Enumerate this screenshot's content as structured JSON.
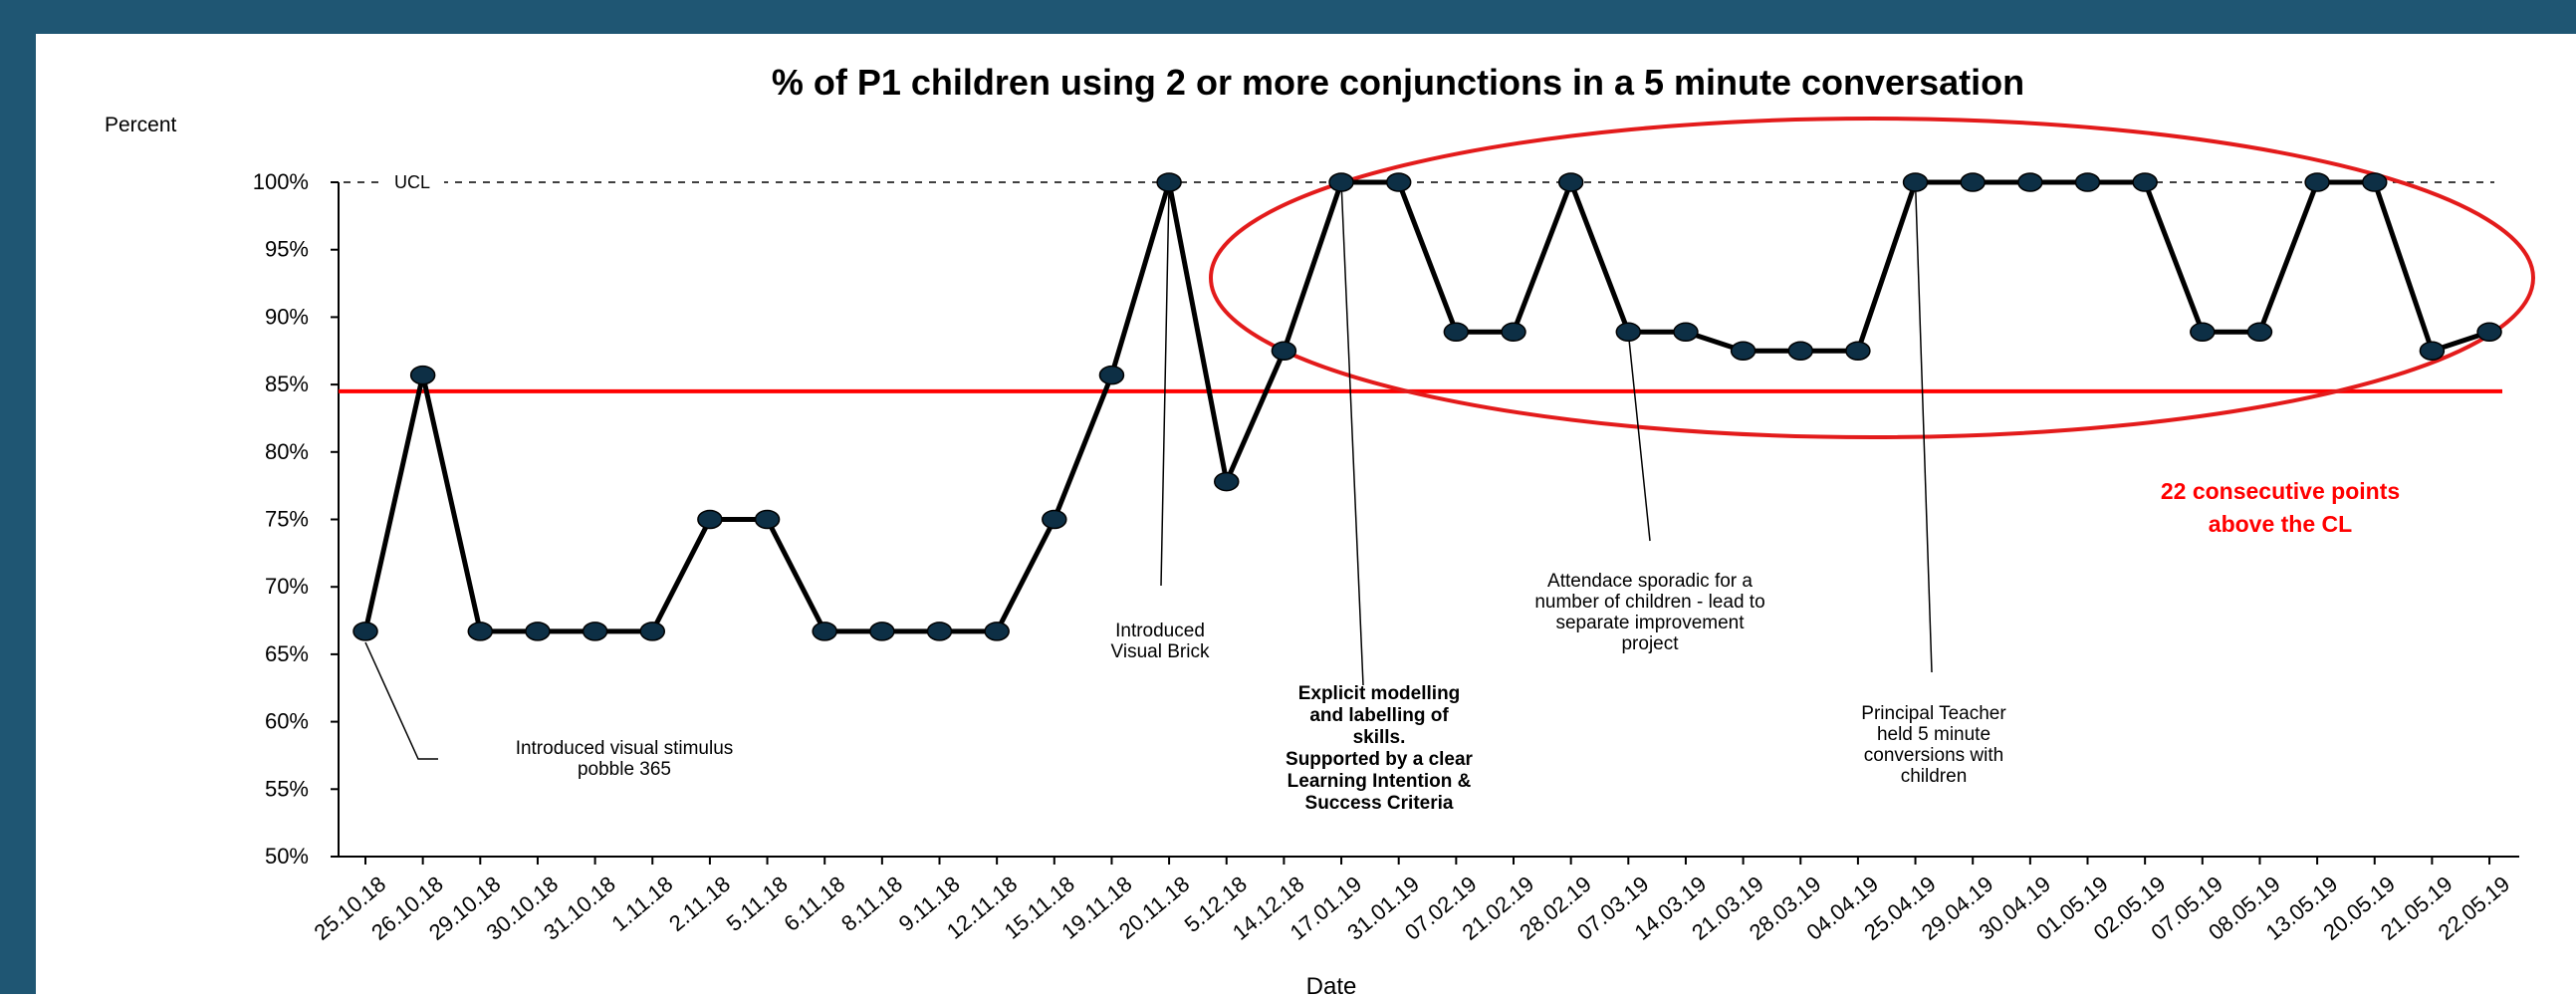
{
  "theme": {
    "border": "#1f5673",
    "line": "#000000",
    "point": "#0d2f45",
    "cl": "#ff0000",
    "highlight": "#e31b1b"
  },
  "chart_data": {
    "type": "line",
    "title": "% of P1 children using 2 or more conjunctions in a 5 minute conversation",
    "xlabel": "Date",
    "ylabel": "Percent",
    "ylim": [
      50,
      100
    ],
    "yticks": [
      "50%",
      "55%",
      "60%",
      "65%",
      "70%",
      "75%",
      "80%",
      "85%",
      "90%",
      "95%",
      "100%"
    ],
    "categories": [
      "25.10.18",
      "26.10.18",
      "29.10.18",
      "30.10.18",
      "31.10.18",
      "1.11.18",
      "2.11.18",
      "5.11.18",
      "6.11.18",
      "8.11.18",
      "9.11.18",
      "12.11.18",
      "15.11.18",
      "19.11.18",
      "20.11.18",
      "5.12.18",
      "14.12.18",
      "17.01.19",
      "31.01.19",
      "07.02.19",
      "21.02.19",
      "28.02.19",
      "07.03.19",
      "14.03.19",
      "21.03.19",
      "28.03.19",
      "04.04.19",
      "25.04.19",
      "29.04.19",
      "30.04.19",
      "01.05.19",
      "02.05.19",
      "07.05.19",
      "08.05.19",
      "13.05.19",
      "20.05.19",
      "21.05.19",
      "22.05.19"
    ],
    "series": [
      {
        "values": [
          66.7,
          85.7,
          66.7,
          66.7,
          66.7,
          66.7,
          75,
          75,
          66.7,
          66.7,
          66.7,
          66.7,
          75,
          85.7,
          100,
          77.8,
          87.5,
          100,
          100,
          88.9,
          88.9,
          100,
          88.9,
          88.9,
          87.5,
          87.5,
          87.5,
          100,
          100,
          100,
          100,
          100,
          88.9,
          88.9,
          100,
          100,
          87.5,
          88.9
        ]
      }
    ],
    "cl": 84.5,
    "ucl": 100,
    "ucl_label": "UCL",
    "grid": false,
    "annotations": [
      {
        "lines": [
          "Introduced visual stimulus",
          "pobble 365"
        ],
        "point": 0,
        "bold": false
      },
      {
        "lines": [
          "Introduced",
          "Visual Brick"
        ],
        "point": 14,
        "bold": false
      },
      {
        "lines": [
          "Explicit modelling",
          "and labelling of",
          "skills.",
          "Supported by a clear",
          "Learning Intention &",
          "Success Criteria"
        ],
        "point": 17,
        "bold": true
      },
      {
        "lines": [
          "Attendace sporadic for a",
          "number of children - lead to",
          "separate improvement",
          "project"
        ],
        "point": 22,
        "bold": false
      },
      {
        "lines": [
          "Principal Teacher",
          "held 5 minute",
          "conversions with",
          "children"
        ],
        "point": 27,
        "bold": false
      }
    ],
    "highlight_note": [
      "22 consecutive points",
      "above the CL"
    ]
  }
}
